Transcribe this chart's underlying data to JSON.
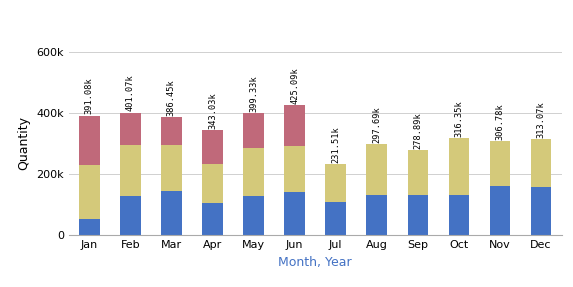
{
  "months": [
    "Jan",
    "Feb",
    "Mar",
    "Apr",
    "May",
    "Jun",
    "Jul",
    "Aug",
    "Sep",
    "Oct",
    "Nov",
    "Dec"
  ],
  "blue": [
    55000,
    128000,
    145000,
    105000,
    128000,
    140000,
    108000,
    132000,
    132000,
    132000,
    162000,
    158000
  ],
  "yellow": [
    175000,
    168000,
    150000,
    128000,
    158000,
    152000,
    123510,
    165690,
    146890,
    184350,
    144780,
    155070
  ],
  "pink": [
    161080,
    105070,
    91450,
    110030,
    113330,
    133090,
    0,
    0,
    0,
    0,
    0,
    0
  ],
  "totals": [
    "391.08k",
    "401.07k",
    "386.45k",
    "343.03k",
    "399.33k",
    "425.09k",
    "231.51k",
    "297.69k",
    "278.89k",
    "316.35k",
    "306.78k",
    "313.07k"
  ],
  "bar_color_blue": "#4472C4",
  "bar_color_yellow": "#D4C97A",
  "bar_color_pink": "#C0697A",
  "ylabel": "Quantity",
  "xlabel": "Month, Year",
  "ylim": [
    0,
    600000
  ],
  "ytick_labels": [
    "0",
    "200k",
    "400k",
    "600k"
  ],
  "bg_color": "#FFFFFF",
  "grid_color": "#D0D0D0"
}
